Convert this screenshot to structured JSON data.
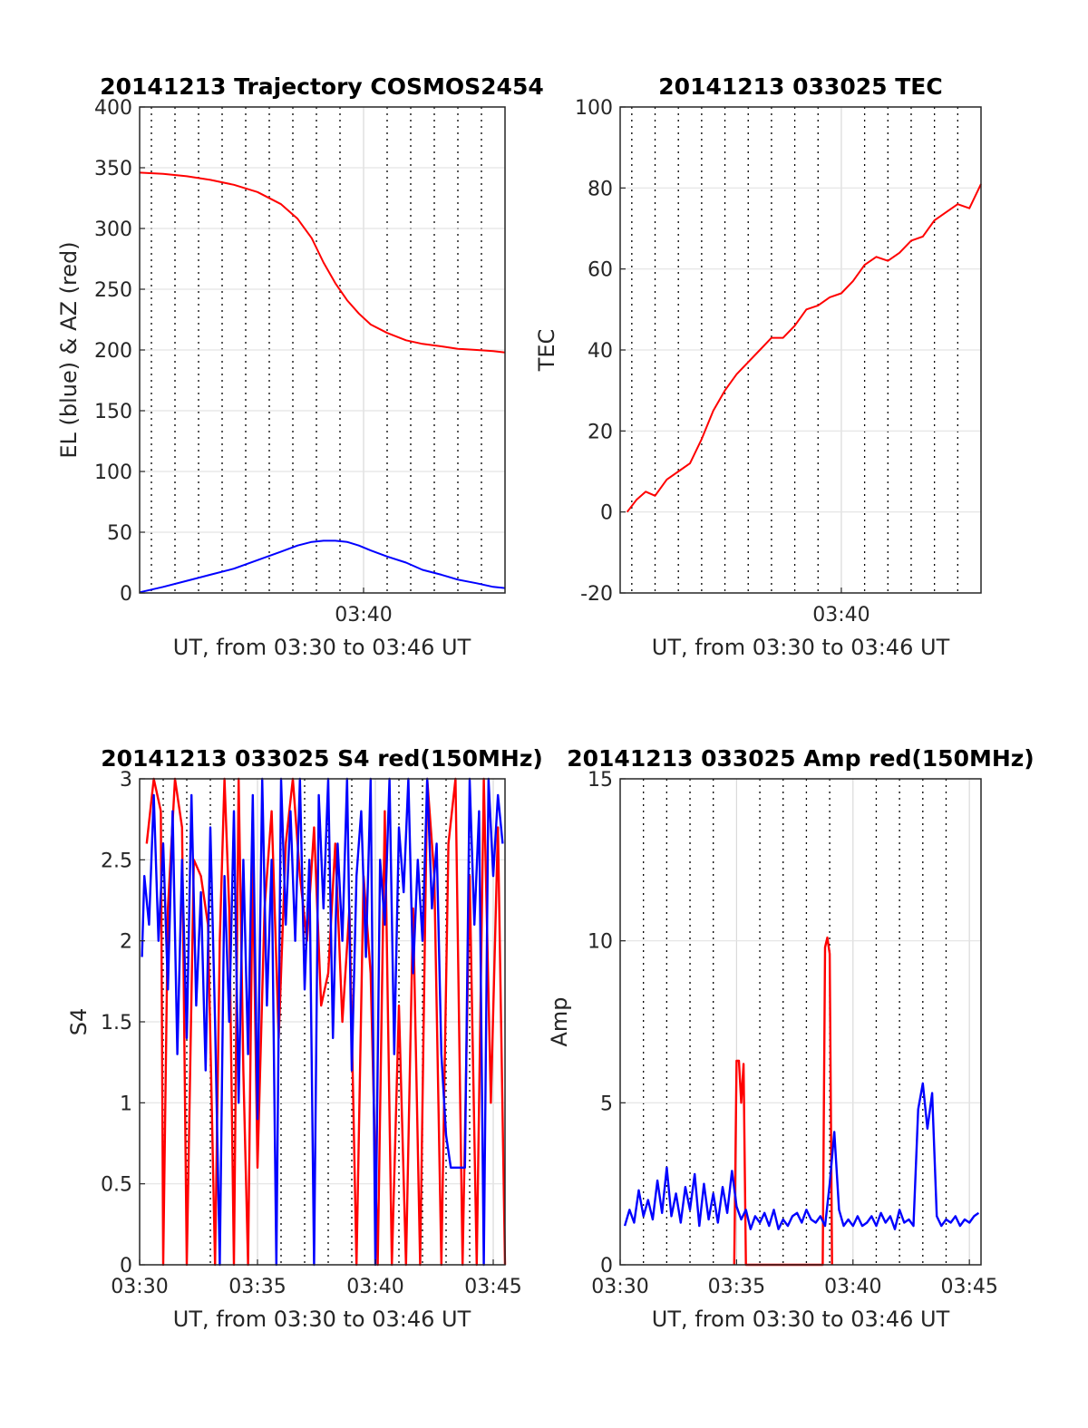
{
  "chart_data": [
    {
      "type": "line",
      "title": "20141213 Trajectory COSMOS2454",
      "xlabel": "UT, from 03:30 to 03:46 UT",
      "ylabel": "EL (blue) & AZ (red)",
      "xlim_minutes": [
        30.5,
        46
      ],
      "ylim": [
        0,
        400
      ],
      "yticks": [
        0,
        50,
        100,
        150,
        200,
        250,
        300,
        350,
        400
      ],
      "xtick_labels": [
        {
          "minute": 40,
          "label": "03:40"
        }
      ],
      "grid": true,
      "series": [
        {
          "color": "#ff0000",
          "x": [
            30.5,
            31.5,
            32.5,
            33.5,
            34.5,
            35.5,
            36.5,
            37.2,
            37.8,
            38.3,
            38.8,
            39.3,
            39.8,
            40.3,
            41,
            41.8,
            42.5,
            43.3,
            44,
            44.8,
            45.5,
            46
          ],
          "y": [
            346,
            345,
            343,
            340,
            336,
            330,
            320,
            308,
            292,
            272,
            255,
            241,
            230,
            221,
            214,
            208,
            205,
            203,
            201,
            200,
            199,
            198
          ]
        },
        {
          "color": "#0000ff",
          "x": [
            30.5,
            31.5,
            32.5,
            33.5,
            34.5,
            35.5,
            36.5,
            37.2,
            37.8,
            38.3,
            38.8,
            39.3,
            39.8,
            40.3,
            41,
            41.8,
            42.5,
            43.3,
            44,
            44.8,
            45.5,
            46
          ],
          "y": [
            0.5,
            5,
            10,
            15,
            20,
            27,
            34,
            39,
            42,
            43,
            43,
            42,
            39,
            35,
            30,
            25,
            19,
            15,
            11,
            8,
            5,
            4
          ]
        }
      ]
    },
    {
      "type": "line",
      "title": "20141213 033025 TEC",
      "xlabel": "UT, from 03:30 to 03:46 UT",
      "ylabel": "TEC",
      "xlim_minutes": [
        30.5,
        46
      ],
      "ylim": [
        -20,
        100
      ],
      "yticks": [
        -20,
        0,
        20,
        40,
        60,
        80,
        100
      ],
      "xtick_labels": [
        {
          "minute": 40,
          "label": "03:40"
        }
      ],
      "grid": true,
      "series": [
        {
          "color": "#ff0000",
          "x": [
            30.8,
            31.2,
            31.6,
            32,
            32.5,
            33,
            33.5,
            34,
            34.5,
            35,
            35.5,
            36,
            36.5,
            37,
            37.5,
            38,
            38.5,
            39,
            39.5,
            40,
            40.5,
            41,
            41.5,
            42,
            42.5,
            43,
            43.5,
            44,
            44.5,
            45,
            45.5,
            46
          ],
          "y": [
            0,
            3,
            5,
            4,
            8,
            10,
            12,
            18,
            25,
            30,
            34,
            37,
            40,
            43,
            43,
            46,
            50,
            51,
            53,
            54,
            57,
            61,
            63,
            62,
            64,
            67,
            68,
            72,
            74,
            76,
            75,
            81
          ]
        }
      ]
    },
    {
      "type": "line",
      "title": "20141213 033025 S4 red(150MHz)",
      "xlabel": "UT, from 03:30 to 03:46 UT",
      "ylabel": "S4",
      "xlim_minutes": [
        30,
        45.5
      ],
      "ylim": [
        0,
        3
      ],
      "yticks": [
        0,
        0.5,
        1,
        1.5,
        2,
        2.5,
        3
      ],
      "xtick_labels": [
        {
          "minute": 30,
          "label": "03:30"
        },
        {
          "minute": 35,
          "label": "03:35"
        },
        {
          "minute": 40,
          "label": "03:40"
        },
        {
          "minute": 45,
          "label": "03:45"
        }
      ],
      "grid": true,
      "series": [
        {
          "color": "#ff0000",
          "x": [
            30.3,
            30.6,
            30.9,
            31,
            31.2,
            31.5,
            31.8,
            32,
            32.3,
            32.6,
            32.9,
            33.2,
            33.4,
            33.6,
            33.8,
            34,
            34.2,
            34.4,
            34.6,
            34.8,
            35,
            35.3,
            35.6,
            35.9,
            36.2,
            36.5,
            36.8,
            37.1,
            37.4,
            37.7,
            38,
            38.3,
            38.6,
            38.9,
            39.2,
            39.5,
            39.8,
            40.1,
            40.4,
            40.7,
            41,
            41.3,
            41.6,
            41.9,
            42.2,
            42.5,
            42.8,
            43.1,
            43.4,
            43.7,
            44,
            44.3,
            44.6,
            44.9,
            45.2,
            45.5
          ],
          "y": [
            2.6,
            3,
            2.8,
            0,
            2.2,
            3,
            2.7,
            0,
            2.5,
            2.4,
            2.1,
            0,
            2,
            3,
            2.2,
            0,
            3,
            1.2,
            0,
            2.5,
            0.6,
            2.2,
            2.8,
            1.4,
            2.6,
            3,
            2.4,
            2,
            2.7,
            1.6,
            1.8,
            2.6,
            1.5,
            2.2,
            0,
            2.4,
            1.8,
            0,
            2.8,
            0,
            1.6,
            0,
            2.2,
            0,
            3,
            2.4,
            0,
            2.6,
            3,
            0,
            2.4,
            0,
            3,
            1,
            2.7,
            0
          ]
        },
        {
          "color": "#0000ff",
          "x": [
            30.1,
            30.2,
            30.4,
            30.6,
            30.8,
            31,
            31.2,
            31.4,
            31.6,
            31.8,
            32,
            32.2,
            32.4,
            32.6,
            32.8,
            33,
            33.2,
            33.4,
            33.6,
            33.8,
            34,
            34.2,
            34.4,
            34.6,
            34.8,
            35,
            35.2,
            35.4,
            35.6,
            35.8,
            36,
            36.2,
            36.4,
            36.6,
            36.8,
            37,
            37.2,
            37.4,
            37.6,
            37.8,
            38,
            38.2,
            38.4,
            38.6,
            38.8,
            39,
            39.2,
            39.4,
            39.6,
            39.8,
            40,
            40.2,
            40.4,
            40.6,
            40.8,
            41,
            41.2,
            41.4,
            41.6,
            41.8,
            42,
            42.2,
            42.4,
            42.6,
            42.8,
            43,
            43.2,
            43.4,
            43.6,
            43.8,
            44,
            44.2,
            44.4,
            44.6,
            44.8,
            45,
            45.2,
            45.4
          ],
          "y": [
            1.9,
            2.4,
            2.1,
            2.9,
            2,
            2.6,
            1.7,
            2.8,
            1.3,
            2.5,
            1.4,
            2.9,
            1.6,
            2.3,
            1.2,
            2.7,
            1.5,
            0,
            2.4,
            1.5,
            2.8,
            1,
            2.5,
            1.3,
            2.9,
            0.9,
            3,
            1.6,
            2.5,
            0,
            3,
            2.1,
            2.8,
            2,
            3,
            1.7,
            2.5,
            0,
            2.9,
            2.2,
            3,
            1.4,
            2.6,
            2,
            3,
            1.2,
            2.4,
            2.8,
            1.9,
            3,
            0,
            2.5,
            2.1,
            3,
            1.3,
            2.7,
            2.3,
            3,
            1.8,
            2.5,
            2,
            3,
            2.2,
            2.6,
            1.3,
            0.8,
            0.6,
            0.6,
            0.6,
            0.6,
            3,
            2.1,
            2.8,
            0,
            3,
            2.4,
            2.9,
            2.6
          ]
        }
      ]
    },
    {
      "type": "line",
      "title": "20141213 033025 Amp red(150MHz)",
      "xlabel": "UT, from 03:30 to 03:46 UT",
      "ylabel": "Amp",
      "xlim_minutes": [
        30,
        45.5
      ],
      "ylim": [
        0,
        15
      ],
      "yticks": [
        0,
        5,
        10,
        15
      ],
      "xtick_labels": [
        {
          "minute": 30,
          "label": "03:30"
        },
        {
          "minute": 35,
          "label": "03:35"
        },
        {
          "minute": 40,
          "label": "03:40"
        },
        {
          "minute": 45,
          "label": "03:45"
        }
      ],
      "grid": true,
      "series": [
        {
          "color": "#ff0000",
          "x": [
            34.9,
            35,
            35.1,
            35.2,
            35.3,
            35.4,
            38.7,
            38.8,
            38.9,
            39,
            39.1
          ],
          "y": [
            0,
            6.3,
            6.3,
            5,
            6.2,
            0,
            0,
            9.8,
            10.1,
            9.6,
            0
          ]
        },
        {
          "color": "#0000ff",
          "x": [
            30.2,
            30.4,
            30.6,
            30.8,
            31,
            31.2,
            31.4,
            31.6,
            31.8,
            32,
            32.2,
            32.4,
            32.6,
            32.8,
            33,
            33.2,
            33.4,
            33.6,
            33.8,
            34,
            34.2,
            34.4,
            34.6,
            34.8,
            35,
            35.2,
            35.4,
            35.6,
            35.8,
            36,
            36.2,
            36.4,
            36.6,
            36.8,
            37,
            37.2,
            37.4,
            37.6,
            37.8,
            38,
            38.2,
            38.4,
            38.6,
            38.8,
            39,
            39.2,
            39.4,
            39.6,
            39.8,
            40,
            40.2,
            40.4,
            40.6,
            40.8,
            41,
            41.2,
            41.4,
            41.6,
            41.8,
            42,
            42.2,
            42.4,
            42.6,
            42.8,
            43,
            43.2,
            43.4,
            43.6,
            43.8,
            44,
            44.2,
            44.4,
            44.6,
            44.8,
            45,
            45.2,
            45.4
          ],
          "y": [
            1.2,
            1.7,
            1.3,
            2.3,
            1.5,
            2.0,
            1.4,
            2.6,
            1.6,
            3.0,
            1.5,
            2.2,
            1.3,
            2.4,
            1.7,
            2.8,
            1.2,
            2.5,
            1.4,
            2.2,
            1.3,
            2.4,
            1.6,
            2.9,
            1.8,
            1.4,
            1.7,
            1.1,
            1.5,
            1.3,
            1.6,
            1.2,
            1.7,
            1.1,
            1.4,
            1.2,
            1.5,
            1.6,
            1.3,
            1.7,
            1.4,
            1.3,
            1.5,
            1.2,
            2.5,
            4.1,
            1.7,
            1.2,
            1.4,
            1.2,
            1.5,
            1.2,
            1.3,
            1.5,
            1.2,
            1.6,
            1.3,
            1.5,
            1.1,
            1.7,
            1.3,
            1.4,
            1.2,
            4.8,
            5.6,
            4.2,
            5.3,
            1.5,
            1.2,
            1.4,
            1.3,
            1.5,
            1.2,
            1.4,
            1.3,
            1.5,
            1.6
          ]
        }
      ]
    }
  ]
}
